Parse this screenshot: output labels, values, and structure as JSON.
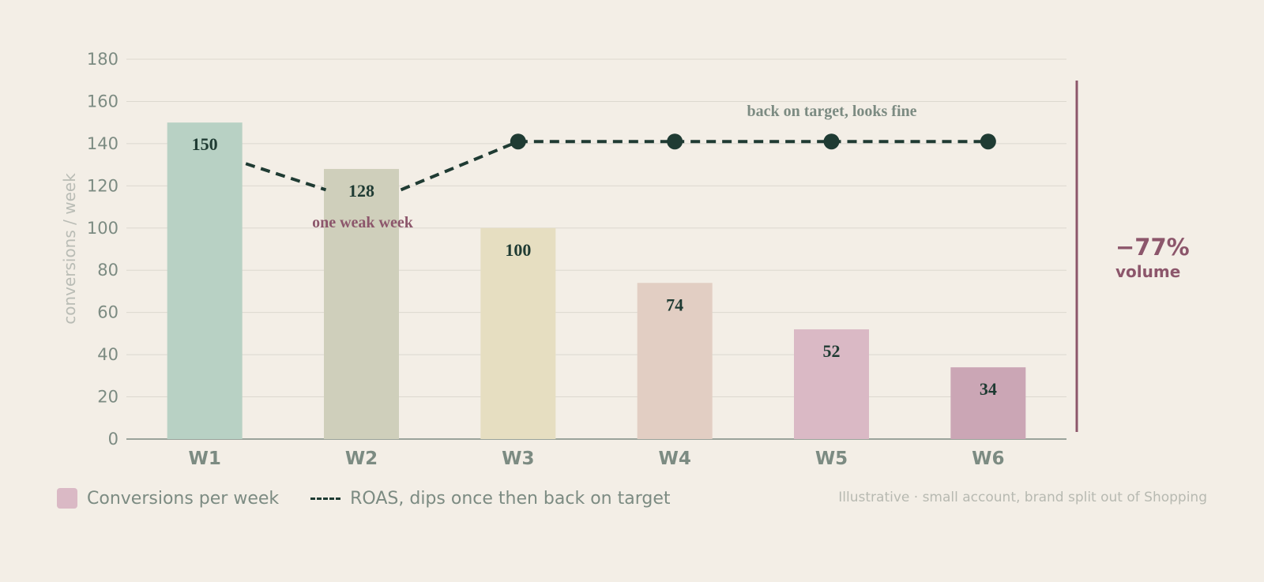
{
  "chart_data": {
    "type": "bar",
    "categories": [
      "W1",
      "W2",
      "W3",
      "W4",
      "W5",
      "W6"
    ],
    "series": [
      {
        "name": "Conversions per week",
        "type": "bar",
        "values": [
          150,
          128,
          100,
          74,
          52,
          34
        ],
        "colors": [
          "#b8d1c4",
          "#cfcfbb",
          "#e6dec1",
          "#e2cec3",
          "#dab9c5",
          "#cba6b5"
        ]
      },
      {
        "name": "ROAS, dips once then back on target",
        "type": "line",
        "style": "dashed",
        "color": "#1f3b33",
        "values": [
          135,
          117,
          141,
          141,
          141,
          141
        ]
      }
    ],
    "ylabel": "conversions / week",
    "ylim": [
      0,
      180
    ],
    "yticks": [
      0,
      20,
      40,
      60,
      80,
      100,
      120,
      140,
      160,
      180
    ],
    "grid": true,
    "legend": "bottom-left",
    "annotations": {
      "dip": "one weak week",
      "target": "back on target, looks fine",
      "change_value": "−77%",
      "change_label": "volume"
    },
    "footnote": "Illustrative · small account, brand split out of Shopping",
    "colors": {
      "accent": "#8c566b",
      "line": "#1f3b33",
      "axis_text": "#7c8b82",
      "muted_text": "#b7b9b1",
      "legend_swatch": "#dab9c5"
    }
  }
}
